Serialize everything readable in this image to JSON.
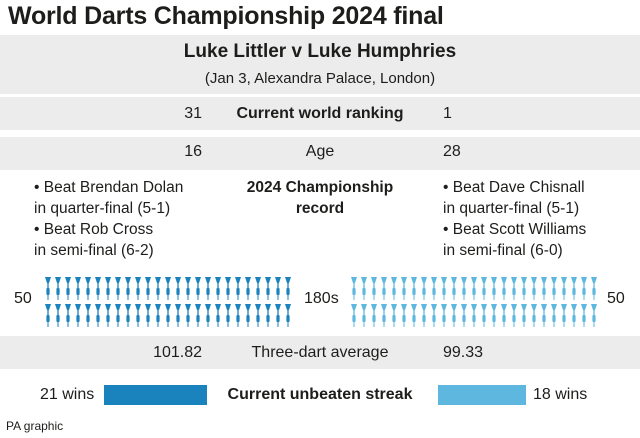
{
  "title": "World Darts Championship 2024 final",
  "subtitle": "Luke Littler v Luke Humphries",
  "venue": "(Jan 3, Alexandra Palace, London)",
  "players": {
    "left": {
      "ranking": "31",
      "age": "16",
      "record": [
        "• Beat Brendan Dolan",
        "in quarter-final (5-1)",
        "• Beat Rob Cross",
        "in semi-final (6-2)"
      ],
      "one_eighties": "50",
      "one_eighties_count": 50,
      "average": "101.82",
      "streak": "21 wins",
      "streak_count": 21
    },
    "right": {
      "ranking": "1",
      "age": "28",
      "record": [
        "• Beat Dave Chisnall",
        "in quarter-final (5-1)",
        "• Beat Scott Williams",
        "in semi-final (6-0)"
      ],
      "one_eighties": "50",
      "one_eighties_count": 50,
      "average": "99.33",
      "streak": "18 wins",
      "streak_count": 18
    }
  },
  "labels": {
    "ranking": "Current world ranking",
    "age": "Age",
    "record_line1": "2024 Championship",
    "record_line2": "record",
    "one_eighties": "180s",
    "average": "Three-dart average",
    "streak": "Current unbeaten streak"
  },
  "colors": {
    "left": "#1a82bd",
    "right": "#5db7de",
    "band": "#ececec"
  },
  "icons": {
    "dart": "dart-icon"
  },
  "footer": "PA graphic"
}
